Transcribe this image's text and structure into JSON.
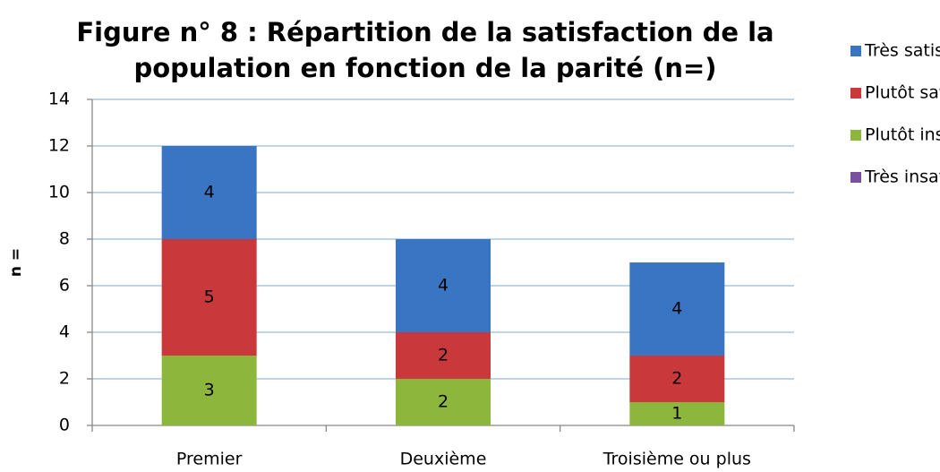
{
  "chart_data": {
    "type": "stacked_bar",
    "title": [
      "Figure n° 8 : Répartition de la satisfaction de la",
      "population en fonction de la parité (n=)"
    ],
    "y_label": "n =",
    "categories": [
      "Premier",
      "Deuxième",
      "Troisième ou plus"
    ],
    "series": [
      {
        "name": "Très insatisfaite",
        "color": "#7a4fa0",
        "values": [
          0,
          0,
          0
        ]
      },
      {
        "name": "Plutôt insatisfaite",
        "color": "#8db63c",
        "values": [
          3,
          2,
          1
        ]
      },
      {
        "name": "Plutôt satisfaite",
        "color": "#c9383a",
        "values": [
          5,
          2,
          2
        ]
      },
      {
        "name": "Très satisfaite",
        "color": "#3a75c4",
        "values": [
          4,
          4,
          4
        ]
      }
    ],
    "ylim": [
      0,
      14
    ],
    "yticks": [
      0,
      2,
      4,
      6,
      8,
      10,
      12,
      14
    ],
    "grid": true,
    "legend": "right"
  }
}
